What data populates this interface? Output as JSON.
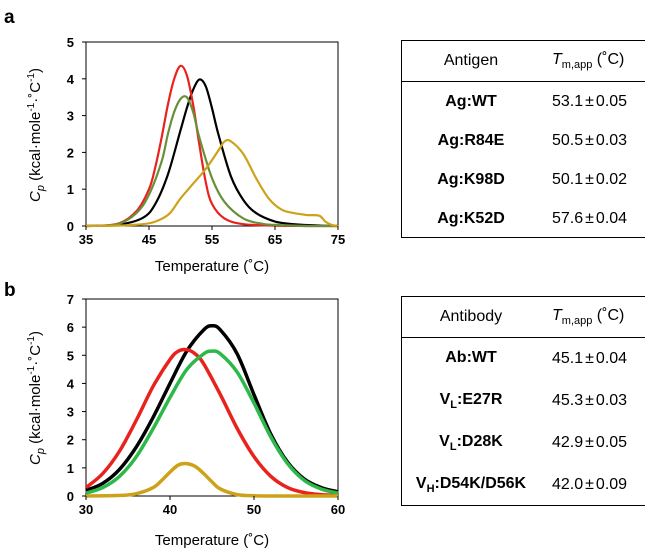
{
  "panel_a": {
    "letter": "a",
    "ylabel_main": "C",
    "ylabel_sub": "p",
    "ylabel_rest": " (kcal·mole",
    "ylabel_sup1": "-1",
    "ylabel_mid": "·˚C",
    "ylabel_sup2": "-1",
    "ylabel_end": ")",
    "xlabel": "Temperature (˚C)",
    "table": {
      "col1_header": "Antigen",
      "col2_header_T": "T",
      "col2_header_sub": "m,app",
      "col2_header_unit": " (˚C)",
      "rows": [
        {
          "name": "Ag:WT",
          "value": "53.1",
          "pm": "±",
          "err": "0.05"
        },
        {
          "name": "Ag:R84E",
          "value": "50.5",
          "pm": "±",
          "err": "0.03"
        },
        {
          "name": "Ag:K98D",
          "value": "50.1",
          "pm": "±",
          "err": "0.02"
        },
        {
          "name": "Ag:K52D",
          "value": "57.6",
          "pm": "±",
          "err": "0.04"
        }
      ]
    }
  },
  "panel_b": {
    "letter": "b",
    "ylabel_main": "C",
    "ylabel_sub": "p",
    "ylabel_rest": " (kcal·mole",
    "ylabel_sup1": "-1",
    "ylabel_mid": "·˚C",
    "ylabel_sup2": "-1",
    "ylabel_end": ")",
    "xlabel": "Temperature (˚C)",
    "table": {
      "col1_header": "Antibody",
      "col2_header_T": "T",
      "col2_header_sub": "m,app",
      "col2_header_unit": " (˚C)",
      "rows": [
        {
          "name_main": "Ab:WT",
          "name_sub": "",
          "name_rest": "",
          "value": "45.1",
          "pm": "±",
          "err": "0.04"
        },
        {
          "name_main": "V",
          "name_sub": "L",
          "name_rest": ":E27R",
          "value": "45.3",
          "pm": "±",
          "err": "0.03"
        },
        {
          "name_main": "V",
          "name_sub": "L",
          "name_rest": ":D28K",
          "value": "42.9",
          "pm": "±",
          "err": "0.05"
        },
        {
          "name_main": "V",
          "name_sub": "H",
          "name_rest": ":D54K/D56K",
          "value": "42.0",
          "pm": "±",
          "err": "0.09"
        }
      ]
    }
  },
  "chart_data": [
    {
      "type": "line",
      "panel": "a",
      "xlabel": "Temperature (˚C)",
      "ylabel": "Cp (kcal·mole-1·˚C-1)",
      "xlim": [
        35,
        75
      ],
      "ylim": [
        0,
        5
      ],
      "xticks": [
        35,
        45,
        55,
        65,
        75
      ],
      "yticks": [
        0,
        1,
        2,
        3,
        4,
        5
      ],
      "grid": false,
      "series": [
        {
          "color": "#000000",
          "x": [
            35,
            40,
            44,
            46,
            48,
            50,
            51,
            52,
            53,
            54,
            55,
            56,
            58,
            60,
            62,
            65,
            68,
            72,
            75
          ],
          "y": [
            0,
            0.03,
            0.22,
            0.6,
            1.4,
            2.6,
            3.2,
            3.7,
            3.98,
            3.8,
            3.2,
            2.5,
            1.35,
            0.7,
            0.35,
            0.12,
            0.05,
            0.01,
            0
          ]
        },
        {
          "color": "#e8231e",
          "x": [
            35,
            40,
            43,
            45,
            46,
            47,
            48,
            49,
            50,
            51,
            52,
            53,
            54,
            55,
            57,
            60,
            65,
            70,
            75
          ],
          "y": [
            0,
            0.06,
            0.4,
            1.0,
            1.6,
            2.4,
            3.3,
            4.0,
            4.35,
            4.1,
            3.3,
            2.2,
            1.2,
            0.6,
            0.2,
            0.05,
            0.01,
            0,
            0
          ]
        },
        {
          "color": "#6a8f3a",
          "x": [
            35,
            40,
            43,
            45,
            47,
            48,
            49,
            50,
            51,
            52,
            53,
            55,
            57,
            60,
            63,
            65,
            70,
            75
          ],
          "y": [
            0,
            0.05,
            0.35,
            0.85,
            1.75,
            2.5,
            3.1,
            3.45,
            3.5,
            3.1,
            2.4,
            1.3,
            0.65,
            0.2,
            0.06,
            0.03,
            0,
            0
          ]
        },
        {
          "color": "#cda21a",
          "x": [
            35,
            40,
            44,
            46,
            48,
            49,
            50,
            52,
            54,
            56,
            57,
            58,
            60,
            62,
            64,
            66,
            68,
            70,
            72,
            73,
            74,
            75
          ],
          "y": [
            0,
            0.01,
            0.05,
            0.12,
            0.3,
            0.5,
            0.75,
            1.15,
            1.55,
            2.05,
            2.3,
            2.3,
            1.95,
            1.3,
            0.75,
            0.45,
            0.35,
            0.3,
            0.28,
            0.12,
            0.03,
            0
          ]
        }
      ]
    },
    {
      "type": "line",
      "panel": "b",
      "xlabel": "Temperature (˚C)",
      "ylabel": "Cp (kcal·mole-1·˚C-1)",
      "xlim": [
        30,
        60
      ],
      "ylim": [
        0,
        7
      ],
      "xticks": [
        30,
        40,
        50,
        60
      ],
      "yticks": [
        0,
        1,
        2,
        3,
        4,
        5,
        6,
        7
      ],
      "grid": false,
      "series": [
        {
          "color": "#000000",
          "x": [
            30,
            32,
            34,
            36,
            38,
            40,
            42,
            44,
            45,
            46,
            48,
            50,
            52,
            54,
            56,
            58,
            60
          ],
          "y": [
            0.2,
            0.45,
            0.95,
            1.75,
            2.8,
            4.0,
            5.15,
            5.9,
            6.05,
            5.9,
            5.05,
            3.6,
            2.2,
            1.2,
            0.6,
            0.3,
            0.15
          ]
        },
        {
          "color": "#e8231e",
          "x": [
            30,
            32,
            34,
            36,
            38,
            40,
            41,
            42,
            43,
            44,
            46,
            48,
            50,
            52,
            54,
            56,
            58,
            60
          ],
          "y": [
            0.3,
            0.8,
            1.6,
            2.7,
            3.9,
            4.85,
            5.15,
            5.2,
            5.05,
            4.7,
            3.6,
            2.4,
            1.4,
            0.7,
            0.3,
            0.12,
            0.05,
            0.02
          ]
        },
        {
          "color": "#2db84a",
          "x": [
            30,
            32,
            34,
            36,
            38,
            40,
            42,
            44,
            45,
            46,
            48,
            50,
            52,
            54,
            56,
            58,
            60
          ],
          "y": [
            0.1,
            0.3,
            0.7,
            1.4,
            2.4,
            3.5,
            4.5,
            5.05,
            5.15,
            5.05,
            4.4,
            3.3,
            2.1,
            1.15,
            0.55,
            0.25,
            0.1
          ]
        },
        {
          "color": "#cda21a",
          "x": [
            30,
            34,
            36,
            38,
            39,
            40,
            41,
            42,
            43,
            44,
            45,
            46,
            48,
            50,
            54,
            60
          ],
          "y": [
            0,
            0.02,
            0.08,
            0.3,
            0.55,
            0.85,
            1.1,
            1.15,
            1.05,
            0.8,
            0.5,
            0.25,
            0.05,
            0.01,
            0,
            0
          ]
        }
      ]
    }
  ]
}
